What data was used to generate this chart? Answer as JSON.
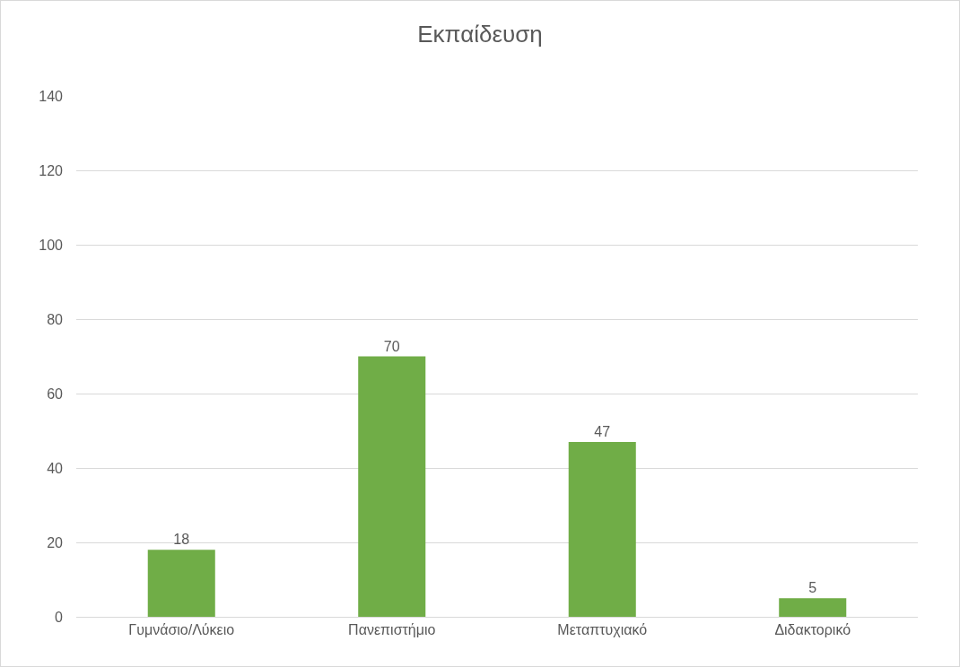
{
  "chart_data": {
    "type": "bar",
    "title": "Εκπαίδευση",
    "categories": [
      "Γυμνάσιο/Λύκειο",
      "Πανεπιστήμιο",
      "Μεταπτυχιακό",
      "Διδακτορικό"
    ],
    "values": [
      18,
      70,
      47,
      5
    ],
    "color": "#70ad47",
    "ylim": [
      0,
      140
    ],
    "yticks": [
      0,
      20,
      40,
      60,
      80,
      100,
      120,
      140
    ],
    "grid": "y",
    "data_labels": true
  }
}
